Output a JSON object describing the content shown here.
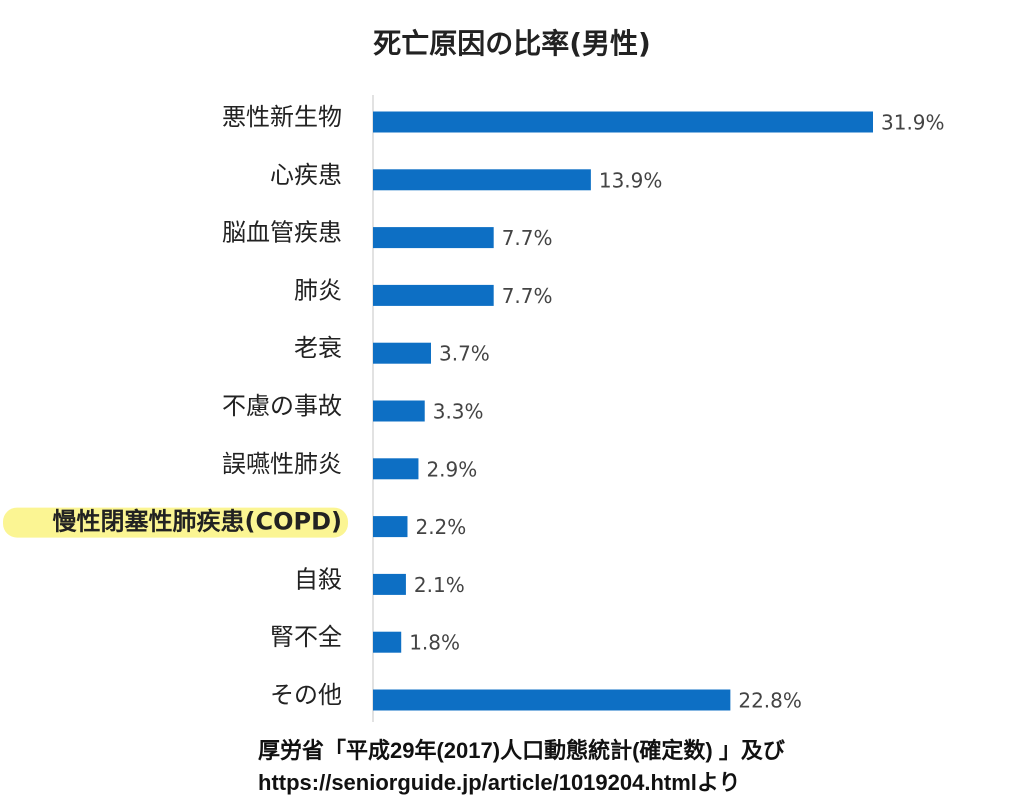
{
  "chart_data": {
    "type": "bar",
    "orientation": "horizontal",
    "title": "死亡原因の比率(男性)",
    "categories": [
      "悪性新生物",
      "心疾患",
      "脳血管疾患",
      "肺炎",
      "老衰",
      "不慮の事故",
      "誤嚥性肺炎",
      "慢性閉塞性肺疾患(COPD)",
      "自殺",
      "腎不全",
      "その他"
    ],
    "values": [
      31.9,
      13.9,
      7.7,
      7.7,
      3.7,
      3.3,
      2.9,
      2.2,
      2.1,
      1.8,
      22.8
    ],
    "value_labels": [
      "31.9%",
      "13.9%",
      "7.7%",
      "7.7%",
      "3.7%",
      "3.3%",
      "2.9%",
      "2.2%",
      "2.1%",
      "1.8%",
      "22.8%"
    ],
    "unit": "%",
    "xlim": [
      0,
      31.9
    ],
    "grid": false,
    "legend": "none",
    "bar_color": "#0d6fc4",
    "highlight_category": "慢性閉塞性肺疾患(COPD)",
    "highlight_color": "#fbf593"
  },
  "source": {
    "line1": "厚労省「平成29年(2017)人口動態統計(確定数) 」及び",
    "line2": "https://seniorguide.jp/article/1019204.htmlより"
  }
}
